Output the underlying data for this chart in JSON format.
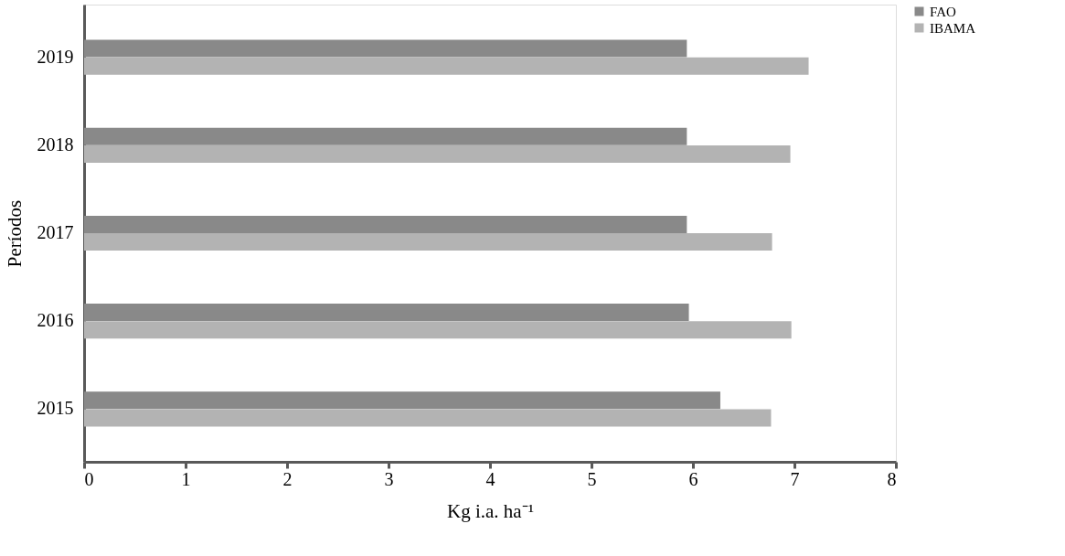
{
  "chart_data": {
    "type": "bar",
    "orientation": "horizontal",
    "xlabel": "Kg i.a. ha⁻¹",
    "ylabel": "Períodos",
    "categories": [
      "2019",
      "2018",
      "2017",
      "2016",
      "2015"
    ],
    "series": [
      {
        "name": "FAO",
        "color": "#898989",
        "values": [
          5.94,
          5.94,
          5.94,
          5.96,
          6.27
        ]
      },
      {
        "name": "IBAMA",
        "color": "#b3b3b3",
        "values": [
          7.14,
          6.96,
          6.78,
          6.97,
          6.77
        ]
      }
    ],
    "xlim": [
      0,
      8
    ],
    "xticks": [
      0,
      1,
      2,
      3,
      4,
      5,
      6,
      7,
      8
    ],
    "grid": false,
    "legend": "right"
  }
}
